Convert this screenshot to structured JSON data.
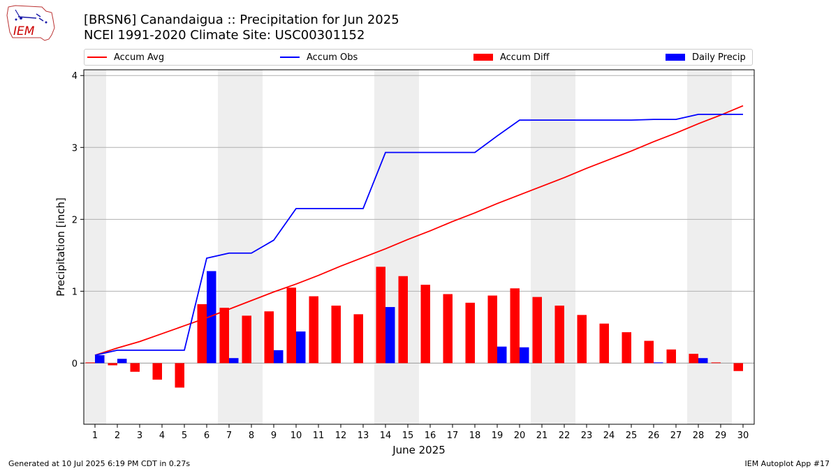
{
  "header": {
    "title_line1": "[BRSN6] Canandaigua :: Precipitation for Jun 2025",
    "title_line2": "NCEI 1991-2020 Climate Site: USC00301152"
  },
  "logo": {
    "text": "IEM"
  },
  "legend": [
    {
      "label": "Accum Avg",
      "kind": "line",
      "color": "#ff0000"
    },
    {
      "label": "Accum Obs",
      "kind": "line",
      "color": "#0000ff"
    },
    {
      "label": "Accum Diff",
      "kind": "bar",
      "color": "#ff0000"
    },
    {
      "label": "Daily Precip",
      "kind": "bar",
      "color": "#0000ff"
    }
  ],
  "footer": {
    "left": "Generated at 10 Jul 2025 6:19 PM CDT in 0.27s",
    "right": "IEM Autoplot App #17"
  },
  "chart_data": {
    "type": "bar",
    "xlabel": "June 2025",
    "ylabel": "Precipitation [inch]",
    "ylim": [
      -0.85,
      4.08
    ],
    "yticks": [
      0,
      1,
      2,
      3,
      4
    ],
    "grid": true,
    "legend_position": "top",
    "x": [
      1,
      2,
      3,
      4,
      5,
      6,
      7,
      8,
      9,
      10,
      11,
      12,
      13,
      14,
      15,
      16,
      17,
      18,
      19,
      20,
      21,
      22,
      23,
      24,
      25,
      26,
      27,
      28,
      29,
      30
    ],
    "weekend_shading": [
      [
        1,
        1
      ],
      [
        7,
        8
      ],
      [
        14,
        15
      ],
      [
        21,
        22
      ],
      [
        28,
        29
      ]
    ],
    "series": [
      {
        "name": "Accum Avg",
        "type": "line",
        "color": "#ff0000",
        "values": [
          0.11,
          0.21,
          0.3,
          0.41,
          0.52,
          0.63,
          0.75,
          0.87,
          0.99,
          1.1,
          1.22,
          1.35,
          1.47,
          1.59,
          1.72,
          1.84,
          1.97,
          2.09,
          2.22,
          2.34,
          2.46,
          2.58,
          2.71,
          2.83,
          2.95,
          3.08,
          3.2,
          3.33,
          3.45,
          3.58
        ]
      },
      {
        "name": "Accum Obs",
        "type": "line",
        "color": "#0000ff",
        "values": [
          0.11,
          0.18,
          0.18,
          0.18,
          0.18,
          1.46,
          1.53,
          1.53,
          1.71,
          2.15,
          2.15,
          2.15,
          2.15,
          2.93,
          2.93,
          2.93,
          2.93,
          2.93,
          3.16,
          3.38,
          3.38,
          3.38,
          3.38,
          3.38,
          3.38,
          3.39,
          3.39,
          3.46,
          3.46,
          3.46
        ]
      },
      {
        "name": "Accum Diff",
        "type": "bar",
        "color": "#ff0000",
        "values": [
          0.01,
          -0.03,
          -0.12,
          -0.23,
          -0.34,
          0.82,
          0.77,
          0.66,
          0.72,
          1.05,
          0.93,
          0.8,
          0.68,
          1.34,
          1.21,
          1.09,
          0.96,
          0.84,
          0.94,
          1.04,
          0.92,
          0.8,
          0.67,
          0.55,
          0.43,
          0.31,
          0.19,
          0.13,
          0.01,
          -0.11
        ]
      },
      {
        "name": "Daily Precip",
        "type": "bar",
        "color": "#0000ff",
        "values": [
          0.11,
          0.06,
          0,
          0,
          0,
          1.28,
          0.07,
          0,
          0.18,
          0.44,
          0,
          0,
          0,
          0.78,
          0,
          0,
          0,
          0,
          0.23,
          0.22,
          0,
          0,
          0,
          0,
          0,
          0.01,
          0,
          0.07,
          0,
          0
        ]
      }
    ]
  }
}
